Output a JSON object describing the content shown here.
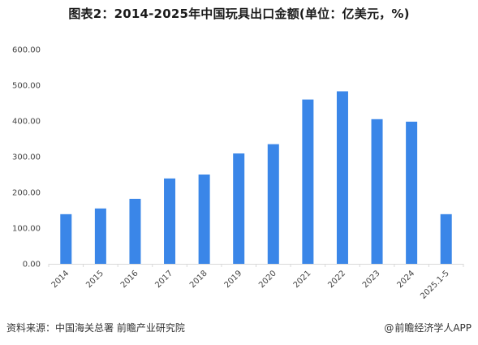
{
  "chart_data": {
    "type": "bar",
    "title": "图表2：2014-2025年中国玩具出口金额(单位：亿美元，%)",
    "categories": [
      "2014",
      "2015",
      "2016",
      "2017",
      "2018",
      "2019",
      "2020",
      "2021",
      "2022",
      "2023",
      "2024",
      "2025.1-5"
    ],
    "values": [
      139,
      155,
      182,
      239,
      250,
      309,
      335,
      460,
      483,
      405,
      398,
      139
    ],
    "ylim": [
      0,
      600
    ],
    "yticks": [
      "0.00",
      "100.00",
      "200.00",
      "300.00",
      "400.00",
      "500.00",
      "600.00"
    ],
    "grid": false,
    "bar_color": "#3a86e8"
  },
  "footer": {
    "source": "资料来源：中国海关总署 前瞻产业研究院",
    "credit": "前瞻经济学人APP",
    "credit_icon": "at-sign-icon"
  }
}
